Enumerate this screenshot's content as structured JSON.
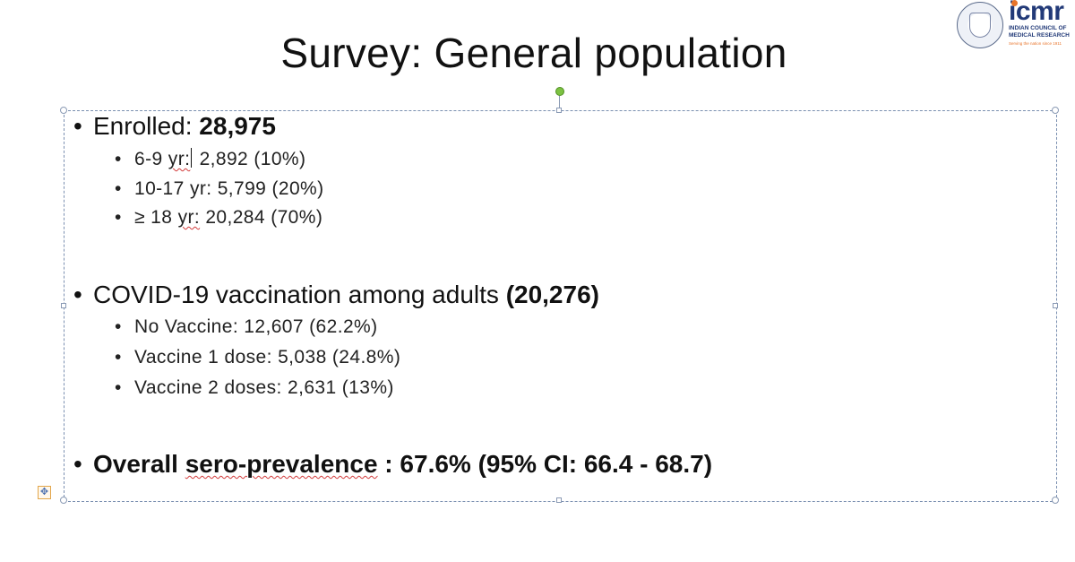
{
  "slide": {
    "title": "Survey: General population"
  },
  "logo": {
    "name": "icmr",
    "org_line1": "INDIAN COUNCIL OF",
    "org_line2": "MEDICAL RESEARCH",
    "tagline": "Serving the nation since 1911"
  },
  "sections": {
    "enrolled": {
      "label": "Enrolled: ",
      "value": "28,975",
      "items": [
        {
          "label": "6-9 ",
          "unit": "yr:",
          "value": " 2,892 (10%)"
        },
        {
          "label": "10-17 yr: 5,799 (20%)"
        },
        {
          "label": "≥ 18 ",
          "unit": "yr:",
          "value": " 20,284 (70%)"
        }
      ]
    },
    "vaccination": {
      "label": "COVID-19 vaccination among adults ",
      "value": "(20,276)",
      "items": [
        {
          "label": "No Vaccine: 12,607 (62.2%)"
        },
        {
          "label": "Vaccine 1 dose: 5,038 (24.8%)"
        },
        {
          "label": "Vaccine 2 doses: 2,631 (13%)"
        }
      ]
    },
    "seroprevalence": {
      "label_a": "Overall ",
      "label_b": "sero-prevalence",
      "label_c": " : ",
      "value": "67.6% (95% CI: 66.4 - 68.7)"
    }
  },
  "colors": {
    "logo_blue": "#223a78",
    "logo_orange": "#e8742a",
    "selection_border": "#7a8fb0",
    "rotate_handle": "#7cc242",
    "spellcheck": "#d23a3a"
  }
}
